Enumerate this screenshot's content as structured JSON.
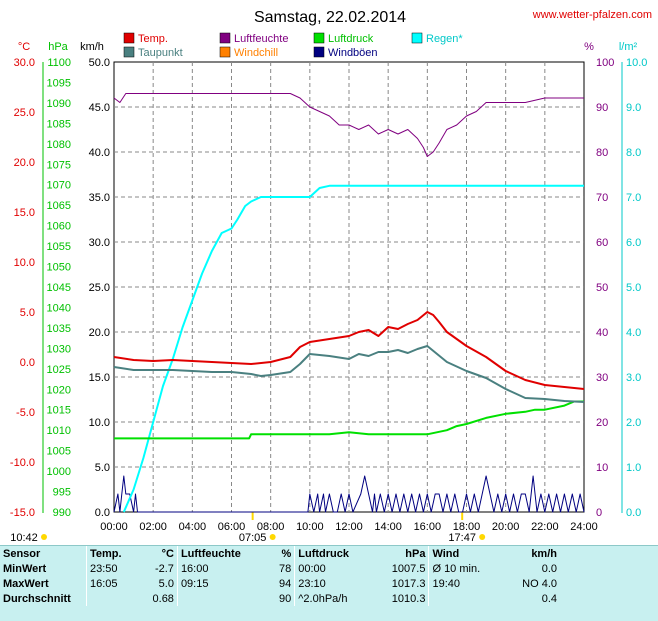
{
  "header": {
    "title": "Samstag, 22.02.2014",
    "site": "www.wetter-pfalzen.com"
  },
  "chart_data": {
    "type": "line",
    "x_ticks": [
      "00:00",
      "02:00",
      "04:00",
      "06:00",
      "08:00",
      "10:00",
      "12:00",
      "14:00",
      "16:00",
      "18:00",
      "20:00",
      "22:00",
      "24:00"
    ],
    "xlim": [
      0,
      24
    ],
    "x_unit": "hours",
    "sun_marks": [
      {
        "label": "10:42",
        "x": -1.0
      },
      {
        "label": "07:05",
        "x": 7.08
      },
      {
        "label": "17:47",
        "x": 17.78
      }
    ],
    "axes": {
      "temp": {
        "unit": "°C",
        "ylim": [
          -15,
          30
        ],
        "ticks": [
          "30.0",
          "25.0",
          "20.0",
          "15.0",
          "10.0",
          "5.0",
          "0.0",
          "-5.0",
          "-10.0",
          "-15.0"
        ],
        "color": "#e00000"
      },
      "pressure": {
        "unit": "hPa",
        "ylim": [
          990,
          1100
        ],
        "ticks": [
          "1100",
          "1095",
          "1090",
          "1085",
          "1080",
          "1075",
          "1070",
          "1065",
          "1060",
          "1055",
          "1050",
          "1045",
          "1040",
          "1035",
          "1030",
          "1025",
          "1020",
          "1015",
          "1010",
          "1005",
          "1000",
          "995",
          "990"
        ],
        "color": "#00c000"
      },
      "wind": {
        "unit": "km/h",
        "ylim": [
          0,
          50
        ],
        "ticks": [
          "50.0",
          "45.0",
          "40.0",
          "35.0",
          "30.0",
          "25.0",
          "20.0",
          "15.0",
          "10.0",
          "5.0",
          "0.0"
        ],
        "color": "#000000"
      },
      "humidity": {
        "unit": "%",
        "ylim": [
          0,
          100
        ],
        "ticks": [
          "100",
          "90",
          "80",
          "70",
          "60",
          "50",
          "40",
          "30",
          "20",
          "10",
          "0"
        ],
        "color": "#800080"
      },
      "rain": {
        "unit": "l/m²",
        "ylim": [
          0,
          10
        ],
        "ticks": [
          "10.0",
          "9.0",
          "8.0",
          "7.0",
          "6.0",
          "5.0",
          "4.0",
          "3.0",
          "2.0",
          "1.0",
          "0.0"
        ],
        "color": "#00c8c8"
      }
    },
    "legend": [
      {
        "name": "Temp.",
        "color": "#e00000"
      },
      {
        "name": "Luftfeuchte",
        "color": "#800080"
      },
      {
        "name": "Luftdruck",
        "color": "#00e000"
      },
      {
        "name": "Regen*",
        "color": "#00ffff"
      },
      {
        "name": "Taupunkt",
        "color": "#4a8080"
      },
      {
        "name": "Windchill",
        "color": "#ff8000"
      },
      {
        "name": "Windböen",
        "color": "#000080"
      }
    ],
    "series": [
      {
        "name": "Temp.",
        "axis": "temp",
        "color": "#e00000",
        "x": [
          0,
          1,
          2,
          3,
          4,
          5,
          6,
          7,
          8,
          9,
          9.5,
          10,
          11,
          12,
          12.5,
          13,
          13.5,
          14,
          14.5,
          15,
          15.5,
          16,
          16.3,
          16.6,
          17,
          18,
          19,
          20,
          21,
          22,
          23,
          24
        ],
        "y": [
          0.5,
          0.2,
          0.1,
          0.2,
          0.1,
          0,
          -0.1,
          -0.2,
          0.0,
          0.5,
          1.5,
          2.0,
          2.3,
          2.6,
          3.0,
          3.2,
          2.6,
          3.5,
          3.3,
          3.8,
          4.2,
          5.0,
          4.7,
          4.0,
          3.0,
          1.6,
          0.5,
          -0.9,
          -1.8,
          -2.3,
          -2.5,
          -2.7
        ]
      },
      {
        "name": "Taupunkt",
        "axis": "temp",
        "color": "#4a8080",
        "x": [
          0,
          1,
          2,
          3,
          4,
          5,
          6,
          7,
          7.5,
          8,
          9,
          9.5,
          10,
          11,
          12,
          12.5,
          13,
          13.5,
          14,
          14.5,
          15,
          15.5,
          16,
          16.5,
          17,
          18,
          19,
          20,
          21,
          22,
          23,
          24
        ],
        "y": [
          -0.5,
          -0.8,
          -0.8,
          -0.8,
          -0.9,
          -1.0,
          -1.0,
          -1.2,
          -1.4,
          -1.3,
          -1.0,
          -0.2,
          0.8,
          0.6,
          0.3,
          0.8,
          0.6,
          1.0,
          1.0,
          1.2,
          0.9,
          1.3,
          1.6,
          0.8,
          0.0,
          -0.9,
          -1.6,
          -2.7,
          -3.6,
          -3.7,
          -3.9,
          -4.0
        ]
      },
      {
        "name": "Luftfeuchte",
        "axis": "humidity",
        "color": "#800080",
        "x": [
          0,
          0.3,
          0.6,
          1,
          2,
          4,
          6,
          8,
          9,
          9.5,
          10,
          11,
          11.5,
          12,
          12.5,
          13,
          13.5,
          14,
          14.5,
          15,
          15.5,
          15.8,
          16,
          16.3,
          16.6,
          17,
          17.5,
          18,
          18.5,
          19,
          21,
          22,
          24
        ],
        "y": [
          92,
          91,
          93,
          93,
          93,
          93,
          93,
          93,
          93,
          92,
          90,
          88,
          86,
          86,
          85,
          86,
          84,
          85,
          84,
          85,
          83,
          81,
          79,
          80,
          82,
          85,
          86,
          88,
          89,
          91,
          91,
          92,
          92
        ]
      },
      {
        "name": "Luftdruck",
        "axis": "pressure",
        "color": "#00e000",
        "x": [
          0,
          2,
          4,
          6,
          6.9,
          7,
          8,
          9,
          10,
          10.5,
          11,
          12,
          13,
          14,
          15,
          16,
          17,
          17.5,
          18,
          19,
          20,
          21,
          21.5,
          22,
          23,
          23.5,
          24
        ],
        "y": [
          1008,
          1008,
          1008,
          1008,
          1008,
          1009,
          1009,
          1009,
          1009,
          1009,
          1009,
          1009.5,
          1009,
          1009,
          1009,
          1009,
          1010,
          1011,
          1011.5,
          1013,
          1014,
          1014.5,
          1015,
          1015,
          1016,
          1017,
          1017
        ]
      },
      {
        "name": "Regen*",
        "axis": "rain",
        "color": "#00ffff",
        "x": [
          0.5,
          1,
          1.5,
          2,
          2.5,
          3,
          3.5,
          4,
          4.5,
          5,
          5.5,
          6,
          6.3,
          6.7,
          7,
          7.5,
          8,
          9,
          10,
          10.5,
          11,
          12,
          14,
          16,
          18,
          20,
          22,
          24
        ],
        "y": [
          0.0,
          0.5,
          1.2,
          2.0,
          2.8,
          3.4,
          4.1,
          4.7,
          5.3,
          5.8,
          6.2,
          6.3,
          6.5,
          6.8,
          6.9,
          7.0,
          7.0,
          7.0,
          7.0,
          7.2,
          7.25,
          7.25,
          7.25,
          7.25,
          7.25,
          7.25,
          7.25,
          7.25
        ]
      },
      {
        "name": "Windböen",
        "axis": "wind",
        "color": "#000080",
        "x": [
          0,
          0.2,
          0.3,
          0.4,
          0.5,
          0.6,
          0.8,
          1.0,
          1.1,
          1.2,
          9.9,
          10.0,
          10.2,
          10.4,
          10.5,
          10.7,
          10.8,
          11.0,
          11.2,
          11.4,
          11.6,
          11.8,
          12.0,
          12.2,
          12.6,
          12.8,
          13.0,
          13.2,
          13.3,
          13.4,
          13.6,
          13.8,
          14.0,
          14.2,
          14.4,
          14.6,
          14.8,
          15.0,
          15.2,
          15.4,
          15.6,
          15.8,
          16.0,
          16.2,
          16.4,
          16.6,
          16.8,
          17.0,
          17.2,
          17.4,
          17.6,
          17.8,
          18.0,
          18.2,
          18.4,
          18.6,
          18.8,
          19.0,
          19.2,
          19.4,
          19.6,
          19.8,
          20.0,
          20.2,
          20.4,
          20.6,
          20.8,
          21.0,
          21.2,
          21.4,
          21.6,
          21.8,
          22.0,
          22.2,
          22.4,
          22.6,
          22.8,
          23.0,
          23.2,
          23.4,
          23.6,
          23.8,
          24.0
        ],
        "y": [
          0,
          2,
          0,
          2,
          4,
          2,
          2,
          0,
          2,
          0,
          0,
          2,
          0,
          2,
          0,
          2,
          0,
          2,
          0,
          0,
          2,
          0,
          2,
          0,
          2,
          4,
          2,
          0,
          2,
          0,
          2,
          0,
          2,
          0,
          2,
          0,
          2,
          0,
          2,
          0,
          2,
          0,
          2,
          0,
          2,
          2,
          0,
          2,
          0,
          2,
          0,
          0,
          2,
          0,
          2,
          0,
          2,
          4,
          2,
          0,
          2,
          0,
          2,
          0,
          2,
          0,
          2,
          2,
          0,
          4,
          0,
          2,
          0,
          2,
          0,
          2,
          0,
          2,
          0,
          2,
          0,
          2,
          0
        ]
      }
    ]
  },
  "stats": {
    "headers": {
      "sensor": "Sensor",
      "temp": "Temp.",
      "temp_unit": "°C",
      "hum": "Luftfeuchte",
      "hum_unit": "%",
      "press": "Luftdruck",
      "press_unit": "hPa",
      "wind": "Wind",
      "wind_unit": "km/h"
    },
    "rows": [
      {
        "label": "MinWert",
        "t_time": "23:50",
        "t_val": "-2.7",
        "h_time": "16:00",
        "h_val": "78",
        "p_time": "00:00",
        "p_val": "1007.5",
        "w_time": "Ø 10 min.",
        "w_val": "0.0"
      },
      {
        "label": "MaxWert",
        "t_time": "16:05",
        "t_val": "5.0",
        "h_time": "09:15",
        "h_val": "94",
        "p_time": "23:10",
        "p_val": "1017.3",
        "w_time": "19:40",
        "w_val": "NO 4.0"
      },
      {
        "label": "Durchschnitt",
        "t_time": "",
        "t_val": "0.68",
        "h_time": "",
        "h_val": "90",
        "p_time": "^2.0hPa/h",
        "p_val": "1010.3",
        "w_time": "",
        "w_val": "0.4"
      }
    ]
  }
}
